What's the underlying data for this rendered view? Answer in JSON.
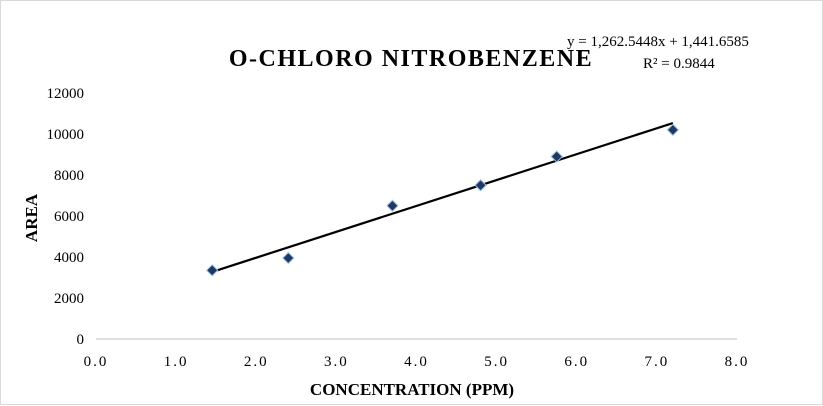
{
  "chart_data": {
    "type": "scatter",
    "title": "O-CHLORO NITROBENZENE",
    "xlabel": "CONCENTRATION (PPM)",
    "ylabel": "AREA",
    "xlim": [
      0,
      8
    ],
    "ylim": [
      0,
      12000
    ],
    "x_ticks": [
      "0.0",
      "1.0",
      "2.0",
      "3.0",
      "4.0",
      "5.0",
      "6.0",
      "7.0",
      "8.0"
    ],
    "y_ticks": [
      "0",
      "2000",
      "4000",
      "6000",
      "8000",
      "10000",
      "12000"
    ],
    "grid": false,
    "series": [
      {
        "x": [
          1.45,
          2.4,
          3.7,
          4.8,
          5.75,
          7.2
        ],
        "y": [
          3350,
          3950,
          6500,
          7500,
          8900,
          10200
        ],
        "marker": "diamond",
        "marker_color": "#1f3864"
      }
    ],
    "trendline": {
      "slope": 1262.5448,
      "intercept": 1441.6585,
      "x_range": [
        1.45,
        7.2
      ],
      "color": "#000000"
    },
    "annotations": {
      "equation": "y = 1,262.5448x + 1,441.6585",
      "r_squared": "R² = 0.9844"
    }
  }
}
